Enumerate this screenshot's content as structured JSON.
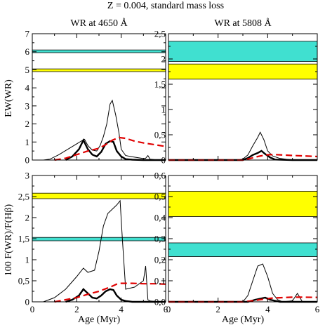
{
  "figure_title": "Z = 0.004, standard mass loss",
  "column_titles": [
    "WR at 4650 Å",
    "WR at 5808 Å"
  ],
  "row_labels": [
    "EW(WR)",
    "100 F(WR)/F(Hβ)"
  ],
  "xlabel": "Age (Myr)",
  "colors": {
    "cyan_band": "#40E0D0",
    "yellow_band": "#FFFF00",
    "model_line": "#000000",
    "dashed_line": "#E00000"
  },
  "chart_data": [
    {
      "id": "top-left",
      "type": "line",
      "xlim": [
        0,
        6
      ],
      "ylim": [
        0,
        7
      ],
      "xticks": [
        0,
        2,
        4,
        6
      ],
      "xtick_labels": [
        "",
        "",
        "",
        ""
      ],
      "yticks": [
        0,
        1,
        2,
        3,
        4,
        5,
        6,
        7
      ],
      "ytick_labels": [
        "0",
        "1",
        "2",
        "3",
        "4",
        "5",
        "6",
        "7"
      ],
      "bands": [
        {
          "color": "cyan",
          "y": [
            5.95,
            6.1
          ]
        },
        {
          "color": "yellow",
          "y": [
            4.9,
            5.05
          ]
        }
      ],
      "series": [
        {
          "style": "thin",
          "x": [
            0.5,
            0.8,
            1.2,
            1.6,
            2.0,
            2.2,
            2.35,
            2.5,
            2.7,
            2.9,
            3.05,
            3.2,
            3.35,
            3.5,
            3.6,
            3.75,
            3.9,
            4.0,
            4.2,
            4.5,
            4.8,
            5.0,
            5.1,
            5.2,
            5.3,
            5.5,
            6.0
          ],
          "y": [
            0,
            0.05,
            0.3,
            0.6,
            0.9,
            1.05,
            1.15,
            0.8,
            0.55,
            0.5,
            0.8,
            1.3,
            2.0,
            3.1,
            3.3,
            2.5,
            1.5,
            0.6,
            0.25,
            0.18,
            0.12,
            0.08,
            0.1,
            0.25,
            0.05,
            0.02,
            0.01
          ]
        },
        {
          "style": "thick",
          "x": [
            1.5,
            1.8,
            2.1,
            2.3,
            2.5,
            2.7,
            2.9,
            3.1,
            3.3,
            3.5,
            3.65,
            3.8,
            4.0,
            4.2,
            4.5,
            5.0,
            6.0
          ],
          "y": [
            0,
            0.2,
            0.6,
            1.1,
            0.6,
            0.3,
            0.2,
            0.45,
            0.9,
            1.05,
            1.0,
            0.5,
            0.2,
            0.05,
            0.02,
            0,
            0
          ]
        },
        {
          "style": "dashed",
          "x": [
            1.0,
            1.5,
            2.0,
            2.5,
            3.0,
            3.3,
            3.6,
            3.9,
            4.2,
            4.6,
            5.0,
            5.5,
            6.0
          ],
          "y": [
            0,
            0.1,
            0.3,
            0.5,
            0.65,
            0.85,
            1.1,
            1.25,
            1.2,
            1.05,
            0.95,
            0.85,
            0.75
          ]
        }
      ]
    },
    {
      "id": "top-right",
      "type": "line",
      "xlim": [
        0,
        6
      ],
      "ylim": [
        0,
        2.5
      ],
      "xticks": [
        0,
        2,
        4,
        6
      ],
      "xtick_labels": [
        "",
        "",
        "",
        ""
      ],
      "yticks": [
        0,
        0.5,
        1,
        1.5,
        2,
        2.5
      ],
      "ytick_labels": [
        "0",
        "0,5",
        "1",
        "1,5",
        "2",
        "2,5"
      ],
      "bands": [
        {
          "color": "cyan",
          "y": [
            1.95,
            2.35
          ]
        },
        {
          "color": "yellow",
          "y": [
            1.6,
            1.9
          ]
        }
      ],
      "series": [
        {
          "style": "thin",
          "x": [
            0,
            2.8,
            3.0,
            3.2,
            3.4,
            3.6,
            3.7,
            3.85,
            4.0,
            4.2,
            4.5,
            5.0,
            6.0
          ],
          "y": [
            0,
            0,
            0.02,
            0.1,
            0.28,
            0.45,
            0.55,
            0.4,
            0.18,
            0.08,
            0.03,
            0,
            0
          ]
        },
        {
          "style": "thick",
          "x": [
            0,
            3.0,
            3.2,
            3.4,
            3.6,
            3.75,
            3.9,
            4.1,
            4.3,
            5.0,
            6.0
          ],
          "y": [
            0,
            0,
            0.04,
            0.1,
            0.14,
            0.18,
            0.12,
            0.05,
            0.01,
            0,
            0
          ]
        },
        {
          "style": "dashed",
          "x": [
            0,
            3.0,
            3.3,
            3.6,
            3.9,
            4.2,
            4.6,
            5.0,
            5.5,
            6.0
          ],
          "y": [
            0,
            0,
            0.03,
            0.07,
            0.1,
            0.11,
            0.1,
            0.09,
            0.08,
            0.07
          ]
        }
      ]
    },
    {
      "id": "bottom-left",
      "type": "line",
      "xlim": [
        0,
        6
      ],
      "ylim": [
        0,
        3
      ],
      "xticks": [
        0,
        2,
        4,
        6
      ],
      "xtick_labels": [
        "0",
        "2",
        "4",
        "6"
      ],
      "yticks": [
        0,
        0.5,
        1,
        1.5,
        2,
        2.5,
        3
      ],
      "ytick_labels": [
        "0",
        "0,5",
        "1",
        "1,5",
        "2",
        "2,5",
        "3"
      ],
      "bands": [
        {
          "color": "yellow",
          "y": [
            2.45,
            2.58
          ]
        },
        {
          "color": "cyan",
          "y": [
            1.45,
            1.53
          ]
        }
      ],
      "series": [
        {
          "style": "thin",
          "x": [
            0.5,
            1.0,
            1.5,
            2.0,
            2.3,
            2.5,
            2.8,
            3.0,
            3.2,
            3.4,
            3.6,
            3.8,
            3.95,
            4.05,
            4.2,
            4.6,
            5.0,
            5.1,
            5.2,
            5.3,
            5.5,
            6.0
          ],
          "y": [
            0,
            0.1,
            0.3,
            0.6,
            0.8,
            0.7,
            0.75,
            1.2,
            1.8,
            2.1,
            2.2,
            2.3,
            2.4,
            1.5,
            0.3,
            0.35,
            0.5,
            0.85,
            0.05,
            0.02,
            0.01,
            0
          ]
        },
        {
          "style": "thick",
          "x": [
            1.5,
            1.8,
            2.1,
            2.3,
            2.5,
            2.7,
            2.9,
            3.1,
            3.3,
            3.5,
            3.65,
            3.8,
            4.0,
            4.2,
            4.5,
            5.0,
            6.0
          ],
          "y": [
            0,
            0.05,
            0.15,
            0.3,
            0.2,
            0.1,
            0.08,
            0.15,
            0.25,
            0.3,
            0.28,
            0.15,
            0.05,
            0.02,
            0,
            0,
            0
          ]
        },
        {
          "style": "dashed",
          "x": [
            1.0,
            1.5,
            2.0,
            2.5,
            3.0,
            3.5,
            3.8,
            4.0,
            4.5,
            5.0,
            5.5,
            6.0
          ],
          "y": [
            0,
            0.05,
            0.1,
            0.18,
            0.25,
            0.35,
            0.42,
            0.44,
            0.44,
            0.43,
            0.43,
            0.42
          ]
        }
      ]
    },
    {
      "id": "bottom-right",
      "type": "line",
      "xlim": [
        0,
        6
      ],
      "ylim": [
        0,
        0.6
      ],
      "xticks": [
        0,
        2,
        4,
        6
      ],
      "xtick_labels": [
        "0",
        "2",
        "4",
        "6"
      ],
      "yticks": [
        0,
        0.1,
        0.2,
        0.3,
        0.4,
        0.5,
        0.6
      ],
      "ytick_labels": [
        "0,0",
        "0,1",
        "0,2",
        "0,3",
        "0,4",
        "0,5",
        "0,6"
      ],
      "bands": [
        {
          "color": "yellow",
          "y": [
            0.405,
            0.525
          ]
        },
        {
          "color": "cyan",
          "y": [
            0.215,
            0.28
          ]
        }
      ],
      "series": [
        {
          "style": "thin",
          "x": [
            0,
            3.0,
            3.2,
            3.4,
            3.6,
            3.8,
            4.0,
            4.2,
            4.4,
            4.6,
            5.0,
            5.2,
            5.4,
            6.0
          ],
          "y": [
            0,
            0,
            0.03,
            0.1,
            0.17,
            0.18,
            0.12,
            0.04,
            0.01,
            0,
            0.005,
            0.04,
            0,
            0
          ]
        },
        {
          "style": "thick",
          "x": [
            0,
            3.2,
            3.5,
            3.7,
            3.9,
            4.1,
            4.5,
            6.0
          ],
          "y": [
            0,
            0,
            0.01,
            0.015,
            0.02,
            0.01,
            0,
            0
          ]
        },
        {
          "style": "dashed",
          "x": [
            0,
            3.0,
            3.4,
            3.8,
            4.2,
            4.6,
            5.0,
            5.5,
            6.0
          ],
          "y": [
            0,
            0,
            0.005,
            0.012,
            0.018,
            0.02,
            0.022,
            0.022,
            0.021
          ]
        }
      ]
    }
  ]
}
